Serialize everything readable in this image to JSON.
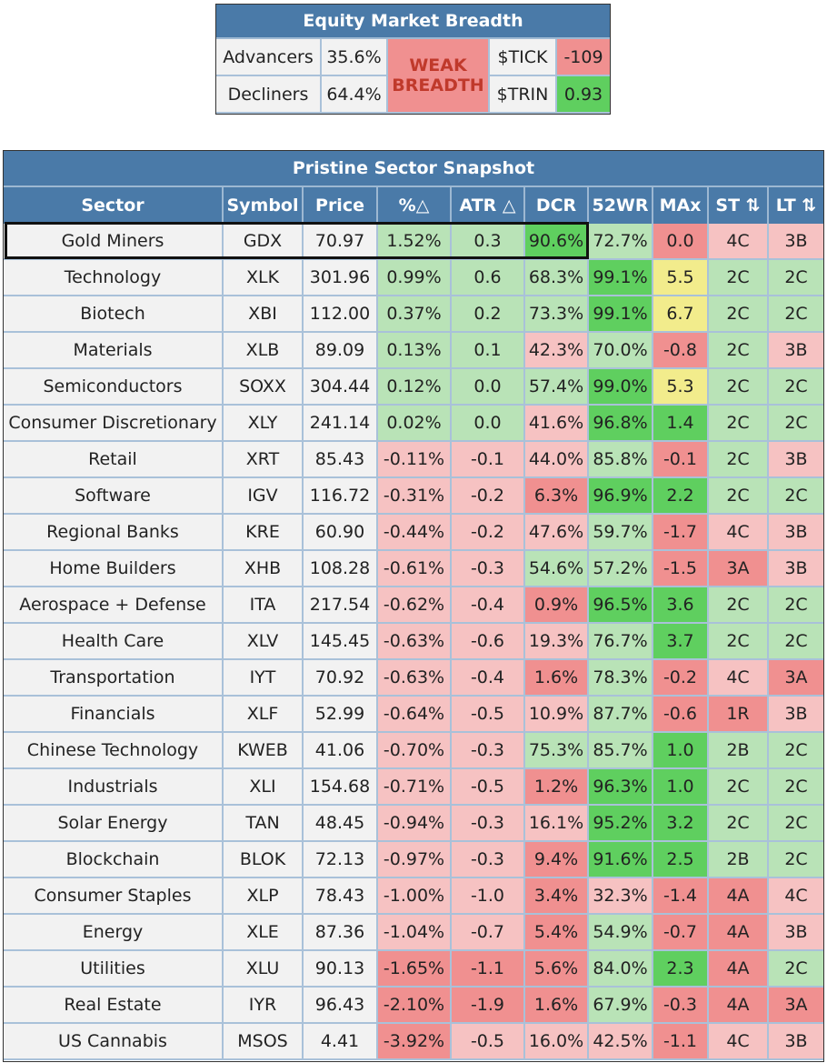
{
  "breadth": {
    "title": "Equity Market Breadth",
    "advancers_label": "Advancers",
    "advancers_value": "35.6%",
    "decliners_label": "Decliners",
    "decliners_value": "64.4%",
    "status_line1": "WEAK",
    "status_line2": "BREADTH",
    "tick_label": "$TICK",
    "tick_value": "-109",
    "trin_label": "$TRIN",
    "trin_value": "0.93"
  },
  "snapshot": {
    "title": "Pristine Sector Snapshot",
    "headers": [
      "Sector",
      "Symbol",
      "Price",
      "%△",
      "ATR △",
      "DCR",
      "52WR",
      "MAx",
      "ST ⇅",
      "LT ⇅"
    ],
    "highlighted_row": 0,
    "rows": [
      {
        "cells": [
          "Gold Miners",
          "GDX",
          "70.97",
          "1.52%",
          "0.3",
          "90.6%",
          "72.7%",
          "0.0",
          "4C",
          "3B"
        ],
        "colors": [
          "w",
          "w",
          "w",
          "g",
          "g",
          "G",
          "g",
          "R",
          "r",
          "r"
        ]
      },
      {
        "cells": [
          "Technology",
          "XLK",
          "301.96",
          "0.99%",
          "0.6",
          "68.3%",
          "99.1%",
          "5.5",
          "2C",
          "2C"
        ],
        "colors": [
          "w",
          "w",
          "w",
          "g",
          "g",
          "g",
          "G",
          "y",
          "g",
          "g"
        ]
      },
      {
        "cells": [
          "Biotech",
          "XBI",
          "112.00",
          "0.37%",
          "0.2",
          "73.3%",
          "99.1%",
          "6.7",
          "2C",
          "2C"
        ],
        "colors": [
          "w",
          "w",
          "w",
          "g",
          "g",
          "g",
          "G",
          "y",
          "g",
          "g"
        ]
      },
      {
        "cells": [
          "Materials",
          "XLB",
          "89.09",
          "0.13%",
          "0.1",
          "42.3%",
          "70.0%",
          "-0.8",
          "2C",
          "3B"
        ],
        "colors": [
          "w",
          "w",
          "w",
          "g",
          "g",
          "r",
          "g",
          "R",
          "g",
          "r"
        ]
      },
      {
        "cells": [
          "Semiconductors",
          "SOXX",
          "304.44",
          "0.12%",
          "0.0",
          "57.4%",
          "99.0%",
          "5.3",
          "2C",
          "2C"
        ],
        "colors": [
          "w",
          "w",
          "w",
          "g",
          "g",
          "g",
          "G",
          "y",
          "g",
          "g"
        ]
      },
      {
        "cells": [
          "Consumer Discretionary",
          "XLY",
          "241.14",
          "0.02%",
          "0.0",
          "41.6%",
          "96.8%",
          "1.4",
          "2C",
          "2C"
        ],
        "colors": [
          "w",
          "w",
          "w",
          "g",
          "g",
          "r",
          "G",
          "G",
          "g",
          "g"
        ]
      },
      {
        "cells": [
          "Retail",
          "XRT",
          "85.43",
          "-0.11%",
          "-0.1",
          "44.0%",
          "85.8%",
          "-0.1",
          "2C",
          "3B"
        ],
        "colors": [
          "w",
          "w",
          "w",
          "r",
          "r",
          "r",
          "g",
          "R",
          "g",
          "r"
        ]
      },
      {
        "cells": [
          "Software",
          "IGV",
          "116.72",
          "-0.31%",
          "-0.2",
          "6.3%",
          "96.9%",
          "2.2",
          "2C",
          "2C"
        ],
        "colors": [
          "w",
          "w",
          "w",
          "r",
          "r",
          "R",
          "G",
          "G",
          "g",
          "g"
        ]
      },
      {
        "cells": [
          "Regional Banks",
          "KRE",
          "60.90",
          "-0.44%",
          "-0.2",
          "47.6%",
          "59.7%",
          "-1.7",
          "4C",
          "3B"
        ],
        "colors": [
          "w",
          "w",
          "w",
          "r",
          "r",
          "r",
          "g",
          "R",
          "r",
          "r"
        ]
      },
      {
        "cells": [
          "Home Builders",
          "XHB",
          "108.28",
          "-0.61%",
          "-0.3",
          "54.6%",
          "57.2%",
          "-1.5",
          "3A",
          "3B"
        ],
        "colors": [
          "w",
          "w",
          "w",
          "r",
          "r",
          "g",
          "g",
          "R",
          "R",
          "r"
        ]
      },
      {
        "cells": [
          "Aerospace + Defense",
          "ITA",
          "217.54",
          "-0.62%",
          "-0.4",
          "0.9%",
          "96.5%",
          "3.6",
          "2C",
          "2C"
        ],
        "colors": [
          "w",
          "w",
          "w",
          "r",
          "r",
          "R",
          "G",
          "G",
          "g",
          "g"
        ]
      },
      {
        "cells": [
          "Health Care",
          "XLV",
          "145.45",
          "-0.63%",
          "-0.6",
          "19.3%",
          "76.7%",
          "3.7",
          "2C",
          "2C"
        ],
        "colors": [
          "w",
          "w",
          "w",
          "r",
          "r",
          "r",
          "g",
          "G",
          "g",
          "g"
        ]
      },
      {
        "cells": [
          "Transportation",
          "IYT",
          "70.92",
          "-0.63%",
          "-0.4",
          "1.6%",
          "78.3%",
          "-0.2",
          "4C",
          "3A"
        ],
        "colors": [
          "w",
          "w",
          "w",
          "r",
          "r",
          "R",
          "g",
          "R",
          "r",
          "R"
        ]
      },
      {
        "cells": [
          "Financials",
          "XLF",
          "52.99",
          "-0.64%",
          "-0.5",
          "10.9%",
          "87.7%",
          "-0.6",
          "1R",
          "3B"
        ],
        "colors": [
          "w",
          "w",
          "w",
          "r",
          "r",
          "r",
          "g",
          "R",
          "R",
          "r"
        ]
      },
      {
        "cells": [
          "Chinese Technology",
          "KWEB",
          "41.06",
          "-0.70%",
          "-0.3",
          "75.3%",
          "85.7%",
          "1.0",
          "2B",
          "2C"
        ],
        "colors": [
          "w",
          "w",
          "w",
          "r",
          "r",
          "g",
          "g",
          "G",
          "g",
          "g"
        ]
      },
      {
        "cells": [
          "Industrials",
          "XLI",
          "154.68",
          "-0.71%",
          "-0.5",
          "1.2%",
          "96.3%",
          "1.0",
          "2C",
          "2C"
        ],
        "colors": [
          "w",
          "w",
          "w",
          "r",
          "r",
          "R",
          "G",
          "G",
          "g",
          "g"
        ]
      },
      {
        "cells": [
          "Solar Energy",
          "TAN",
          "48.45",
          "-0.94%",
          "-0.3",
          "16.1%",
          "95.2%",
          "3.2",
          "2C",
          "2C"
        ],
        "colors": [
          "w",
          "w",
          "w",
          "r",
          "r",
          "r",
          "G",
          "G",
          "g",
          "g"
        ]
      },
      {
        "cells": [
          "Blockchain",
          "BLOK",
          "72.13",
          "-0.97%",
          "-0.3",
          "9.4%",
          "91.6%",
          "2.5",
          "2B",
          "2C"
        ],
        "colors": [
          "w",
          "w",
          "w",
          "r",
          "r",
          "R",
          "G",
          "G",
          "g",
          "g"
        ]
      },
      {
        "cells": [
          "Consumer Staples",
          "XLP",
          "78.43",
          "-1.00%",
          "-1.0",
          "3.4%",
          "32.3%",
          "-1.4",
          "4A",
          "4C"
        ],
        "colors": [
          "w",
          "w",
          "w",
          "r",
          "r",
          "R",
          "r",
          "R",
          "R",
          "r"
        ]
      },
      {
        "cells": [
          "Energy",
          "XLE",
          "87.36",
          "-1.04%",
          "-0.7",
          "5.4%",
          "54.9%",
          "-0.7",
          "4A",
          "3B"
        ],
        "colors": [
          "w",
          "w",
          "w",
          "r",
          "r",
          "R",
          "g",
          "R",
          "R",
          "r"
        ]
      },
      {
        "cells": [
          "Utilities",
          "XLU",
          "90.13",
          "-1.65%",
          "-1.1",
          "5.6%",
          "84.0%",
          "2.3",
          "4A",
          "2C"
        ],
        "colors": [
          "w",
          "w",
          "w",
          "R",
          "R",
          "R",
          "g",
          "G",
          "R",
          "g"
        ]
      },
      {
        "cells": [
          "Real Estate",
          "IYR",
          "96.43",
          "-2.10%",
          "-1.9",
          "1.6%",
          "67.9%",
          "-0.3",
          "4A",
          "3A"
        ],
        "colors": [
          "w",
          "w",
          "w",
          "R",
          "R",
          "R",
          "g",
          "R",
          "R",
          "R"
        ]
      },
      {
        "cells": [
          "US Cannabis",
          "MSOS",
          "4.41",
          "-3.92%",
          "-0.5",
          "16.0%",
          "42.5%",
          "-1.1",
          "4C",
          "3B"
        ],
        "colors": [
          "w",
          "w",
          "w",
          "R",
          "r",
          "r",
          "r",
          "R",
          "r",
          "r"
        ]
      }
    ]
  }
}
